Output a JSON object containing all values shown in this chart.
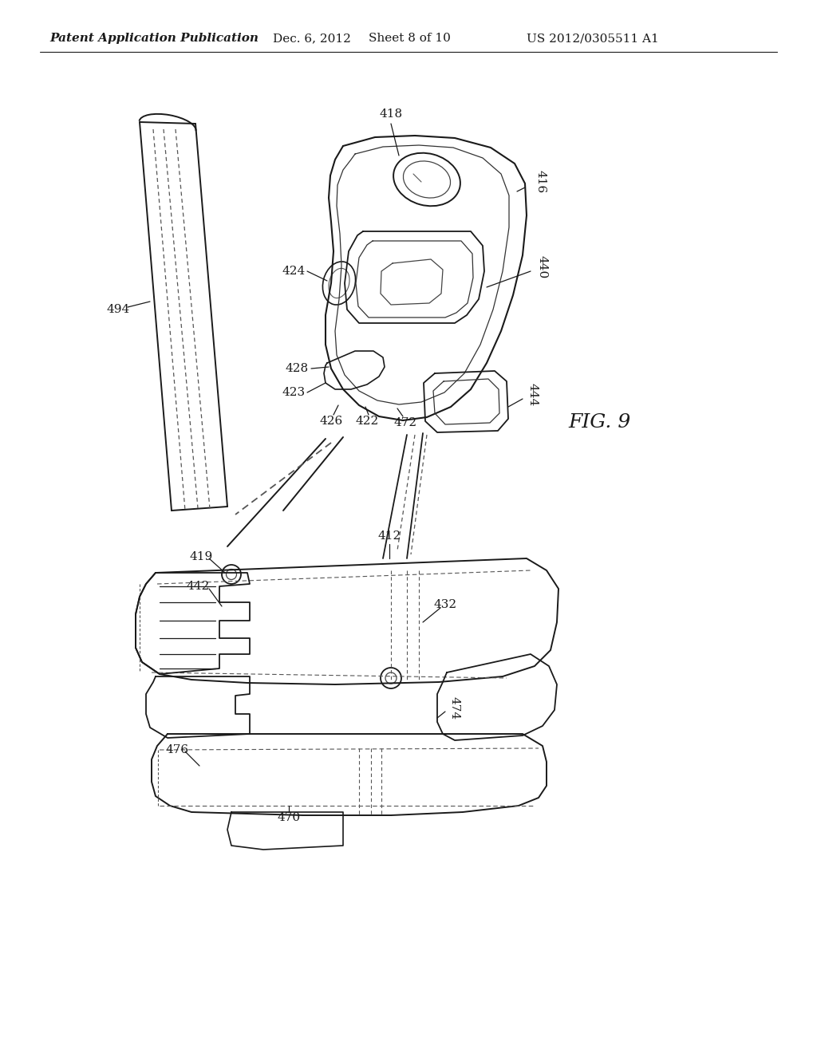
{
  "title": "Patent Application Publication",
  "date": "Dec. 6, 2012",
  "sheet": "Sheet 8 of 10",
  "patent_num": "US 2012/0305511 A1",
  "fig_label": "FIG. 9",
  "background_color": "#ffffff",
  "line_color": "#1a1a1a",
  "header_fontsize": 11,
  "fig_label_fontsize": 18,
  "label_fontsize": 11
}
